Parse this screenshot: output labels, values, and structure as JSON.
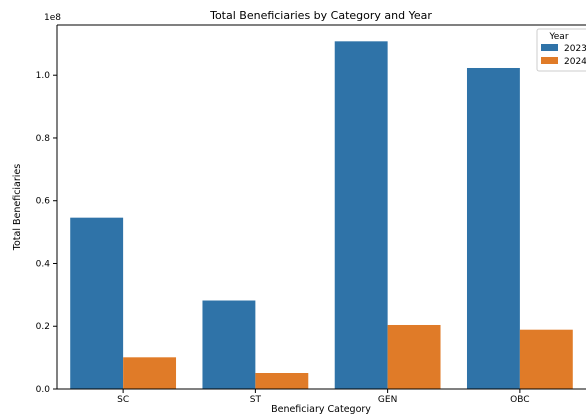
{
  "chart_data": {
    "type": "bar",
    "title": "Total Beneficiaries by Category and Year",
    "xlabel": "Beneficiary Category",
    "ylabel": "Total Beneficiaries",
    "y_scale_label": "1e8",
    "categories": [
      "SC",
      "ST",
      "GEN",
      "OBC"
    ],
    "series": [
      {
        "name": "2023",
        "color": "#2f73a8",
        "values": [
          54600000,
          28200000,
          110800000,
          102300000
        ]
      },
      {
        "name": "2024",
        "color": "#e07b28",
        "values": [
          10100000,
          5100000,
          20400000,
          18900000
        ]
      }
    ],
    "ylim": [
      0,
      116000000
    ],
    "y_ticks": [
      0,
      20000000,
      40000000,
      60000000,
      80000000,
      100000000
    ],
    "y_tick_labels": [
      "0.0",
      "0.2",
      "0.4",
      "0.6",
      "0.8",
      "1.0"
    ],
    "legend": {
      "title": "Year",
      "placement": "top-right"
    },
    "grid": false
  }
}
